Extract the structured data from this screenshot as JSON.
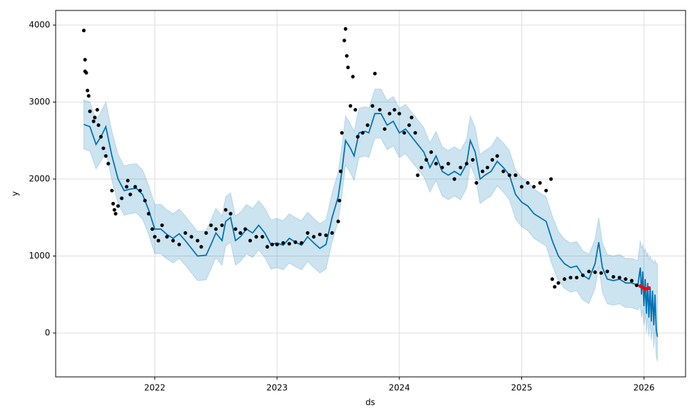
{
  "chart_data": {
    "type": "forecast",
    "xlabel": "ds",
    "ylabel": "y",
    "xlim": [
      2021.19,
      2026.34
    ],
    "ylim": [
      -570,
      4190
    ],
    "xticks": [
      2022,
      2023,
      2024,
      2025,
      2026
    ],
    "yticks": [
      0,
      1000,
      2000,
      3000,
      4000
    ],
    "grid": true,
    "interval": {
      "color": "#0072B2",
      "lower": [
        2390,
        2360,
        2130,
        2230,
        2360,
        1980,
        1680,
        1530,
        1550,
        1560,
        1480,
        1280,
        1030,
        1030,
        960,
        910,
        970,
        880,
        780,
        680,
        690,
        830,
        980,
        880,
        1130,
        1180,
        880,
        930,
        1030,
        980,
        1080,
        980,
        830,
        850,
        820,
        910,
        860,
        820,
        930,
        850,
        780,
        830,
        1180,
        1450,
        1780,
        2180,
        2080,
        1980,
        2280,
        2300,
        2280,
        2530,
        2530,
        2380,
        2430,
        2280,
        2330,
        2230,
        2130,
        2030,
        1830,
        1980,
        1780,
        1730,
        1780,
        1730,
        1880,
        2180,
        2030,
        1680,
        1730,
        1780,
        1910,
        1830,
        1730,
        1480,
        1380,
        1330,
        1230,
        1180,
        1130,
        880,
        680,
        580,
        530,
        550,
        430,
        380,
        580,
        860,
        530,
        380,
        360,
        380,
        330,
        330,
        300,
        350,
        200,
        300,
        100,
        250,
        0,
        200,
        -50,
        150,
        -100,
        100,
        -200,
        50,
        -300,
        -370
      ],
      "upper": [
        3030,
        3000,
        2770,
        2870,
        3000,
        2620,
        2320,
        2170,
        2190,
        2200,
        2120,
        1920,
        1670,
        1670,
        1600,
        1550,
        1610,
        1520,
        1420,
        1320,
        1330,
        1470,
        1620,
        1520,
        1770,
        1820,
        1520,
        1570,
        1670,
        1620,
        1720,
        1620,
        1470,
        1490,
        1460,
        1550,
        1500,
        1460,
        1570,
        1490,
        1420,
        1470,
        1820,
        2090,
        2420,
        2820,
        2720,
        2620,
        2920,
        2940,
        2920,
        3170,
        3170,
        3020,
        3070,
        2920,
        2970,
        2870,
        2770,
        2670,
        2470,
        2620,
        2420,
        2370,
        2420,
        2370,
        2520,
        2820,
        2670,
        2320,
        2370,
        2420,
        2550,
        2470,
        2370,
        2120,
        2020,
        1970,
        1870,
        1820,
        1770,
        1520,
        1320,
        1220,
        1170,
        1190,
        1070,
        1020,
        1220,
        1500,
        1170,
        1020,
        1000,
        1020,
        970,
        970,
        940,
        1200,
        1100,
        1150,
        1050,
        1100,
        1000,
        1050,
        950,
        1000,
        950,
        950,
        900,
        950,
        900,
        900
      ]
    },
    "forecast": {
      "color": "#0072B2",
      "x": [
        2021.42,
        2021.47,
        2021.52,
        2021.56,
        2021.6,
        2021.65,
        2021.7,
        2021.75,
        2021.8,
        2021.85,
        2021.9,
        2021.95,
        2022.0,
        2022.05,
        2022.1,
        2022.15,
        2022.2,
        2022.25,
        2022.3,
        2022.35,
        2022.42,
        2022.46,
        2022.5,
        2022.55,
        2022.58,
        2022.62,
        2022.66,
        2022.7,
        2022.75,
        2022.8,
        2022.85,
        2022.9,
        2022.95,
        2023.0,
        2023.05,
        2023.1,
        2023.15,
        2023.2,
        2023.25,
        2023.3,
        2023.35,
        2023.4,
        2023.45,
        2023.5,
        2023.53,
        2023.56,
        2023.6,
        2023.63,
        2023.67,
        2023.72,
        2023.75,
        2023.8,
        2023.85,
        2023.9,
        2023.95,
        2024.0,
        2024.05,
        2024.1,
        2024.15,
        2024.2,
        2024.25,
        2024.3,
        2024.35,
        2024.4,
        2024.45,
        2024.5,
        2024.55,
        2024.58,
        2024.62,
        2024.66,
        2024.7,
        2024.75,
        2024.8,
        2024.85,
        2024.9,
        2024.95,
        2025.0,
        2025.05,
        2025.1,
        2025.15,
        2025.2,
        2025.25,
        2025.3,
        2025.35,
        2025.4,
        2025.45,
        2025.5,
        2025.55,
        2025.6,
        2025.63,
        2025.66,
        2025.7,
        2025.75,
        2025.8,
        2025.85,
        2025.9,
        2025.95,
        2025.97,
        2025.98,
        2025.99,
        2026.0,
        2026.01,
        2026.02,
        2026.03,
        2026.04,
        2026.05,
        2026.06,
        2026.07,
        2026.08,
        2026.09,
        2026.1,
        2026.11
      ],
      "values": [
        2710,
        2680,
        2450,
        2550,
        2680,
        2300,
        2000,
        1850,
        1870,
        1880,
        1800,
        1600,
        1350,
        1350,
        1280,
        1230,
        1290,
        1200,
        1100,
        1000,
        1010,
        1150,
        1300,
        1200,
        1450,
        1500,
        1200,
        1250,
        1350,
        1300,
        1400,
        1300,
        1150,
        1170,
        1140,
        1230,
        1180,
        1140,
        1250,
        1170,
        1100,
        1150,
        1500,
        1770,
        2100,
        2500,
        2400,
        2300,
        2600,
        2620,
        2600,
        2850,
        2850,
        2700,
        2750,
        2600,
        2650,
        2550,
        2450,
        2350,
        2150,
        2300,
        2100,
        2050,
        2100,
        2050,
        2200,
        2500,
        2350,
        2000,
        2050,
        2100,
        2230,
        2150,
        2050,
        1800,
        1700,
        1650,
        1550,
        1500,
        1450,
        1200,
        1000,
        900,
        850,
        870,
        750,
        700,
        900,
        1180,
        850,
        700,
        680,
        700,
        650,
        650,
        620,
        850,
        500,
        800,
        350,
        700,
        250,
        650,
        200,
        600,
        150,
        550,
        100,
        500,
        50,
        -50
      ]
    },
    "observed": {
      "color": "#000000",
      "x": [
        2021.42,
        2021.43,
        2021.43,
        2021.44,
        2021.45,
        2021.46,
        2021.47,
        2021.5,
        2021.51,
        2021.53,
        2021.54,
        2021.56,
        2021.58,
        2021.6,
        2021.62,
        2021.65,
        2021.66,
        2021.67,
        2021.68,
        2021.7,
        2021.73,
        2021.77,
        2021.78,
        2021.8,
        2021.84,
        2021.88,
        2021.92,
        2021.95,
        2021.98,
        2022.0,
        2022.03,
        2022.06,
        2022.1,
        2022.15,
        2022.2,
        2022.25,
        2022.3,
        2022.35,
        2022.38,
        2022.42,
        2022.46,
        2022.5,
        2022.55,
        2022.58,
        2022.62,
        2022.66,
        2022.7,
        2022.74,
        2022.78,
        2022.83,
        2022.88,
        2022.92,
        2022.96,
        2023.0,
        2023.05,
        2023.1,
        2023.15,
        2023.2,
        2023.25,
        2023.3,
        2023.35,
        2023.4,
        2023.45,
        2023.5,
        2023.51,
        2023.52,
        2023.53,
        2023.55,
        2023.56,
        2023.57,
        2023.58,
        2023.6,
        2023.62,
        2023.64,
        2023.66,
        2023.7,
        2023.74,
        2023.78,
        2023.8,
        2023.84,
        2023.88,
        2023.92,
        2023.96,
        2024.0,
        2024.04,
        2024.08,
        2024.1,
        2024.13,
        2024.15,
        2024.18,
        2024.22,
        2024.26,
        2024.3,
        2024.35,
        2024.4,
        2024.45,
        2024.5,
        2024.55,
        2024.6,
        2024.63,
        2024.68,
        2024.72,
        2024.76,
        2024.8,
        2024.85,
        2024.9,
        2024.95,
        2025.0,
        2025.05,
        2025.1,
        2025.15,
        2025.2,
        2025.24,
        2025.25,
        2025.27,
        2025.3,
        2025.35,
        2025.4,
        2025.45,
        2025.5,
        2025.55,
        2025.6,
        2025.65,
        2025.7,
        2025.75,
        2025.8,
        2025.85,
        2025.9,
        2025.94
      ],
      "values": [
        3930,
        3400,
        3550,
        3380,
        3150,
        3080,
        2880,
        2750,
        2800,
        2900,
        2700,
        2550,
        2400,
        2300,
        2200,
        1850,
        1680,
        1600,
        1550,
        1650,
        1750,
        1900,
        1980,
        1800,
        1900,
        1850,
        1720,
        1550,
        1350,
        1250,
        1200,
        1400,
        1250,
        1200,
        1150,
        1300,
        1250,
        1200,
        1120,
        1300,
        1400,
        1350,
        1400,
        1600,
        1550,
        1350,
        1300,
        1350,
        1200,
        1250,
        1250,
        1120,
        1150,
        1150,
        1170,
        1160,
        1180,
        1170,
        1300,
        1250,
        1280,
        1270,
        1300,
        1450,
        1720,
        2100,
        2600,
        3800,
        3950,
        3600,
        3450,
        2950,
        3330,
        2900,
        2550,
        2600,
        2700,
        2950,
        3370,
        2900,
        2650,
        2850,
        2900,
        2850,
        2600,
        2700,
        2800,
        2600,
        2050,
        2150,
        2250,
        2350,
        2200,
        2150,
        2200,
        2000,
        2150,
        2200,
        2250,
        1950,
        2100,
        2150,
        2250,
        2300,
        2100,
        2050,
        2050,
        1900,
        1950,
        1900,
        1950,
        1850,
        2000,
        700,
        600,
        650,
        700,
        720,
        720,
        750,
        800,
        790,
        780,
        800,
        730,
        720,
        700,
        680,
        620
      ]
    },
    "recent": {
      "color": "#ff0000",
      "x": [
        2025.97,
        2025.99,
        2026.01,
        2026.03,
        2026.04
      ],
      "values": [
        610,
        590,
        570,
        580,
        585
      ]
    }
  }
}
